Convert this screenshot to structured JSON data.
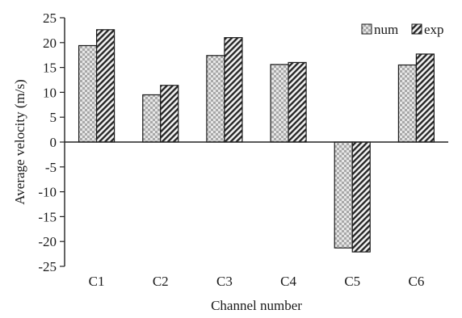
{
  "chart_data": {
    "type": "bar",
    "title": "",
    "xlabel": "Channel number",
    "ylabel": "Average velocity (m/s)",
    "categories": [
      "C1",
      "C2",
      "C3",
      "C4",
      "C5",
      "C6"
    ],
    "ylim": [
      -25,
      25
    ],
    "yticks": [
      25,
      20,
      15,
      10,
      5,
      0,
      -5,
      -10,
      -15,
      -20,
      -25
    ],
    "grid": false,
    "legend_position": "top-right",
    "series": [
      {
        "name": "num",
        "values": [
          19.4,
          9.5,
          17.4,
          15.6,
          -21.3,
          15.5
        ],
        "color": "#bdbdbd",
        "pattern": "checker"
      },
      {
        "name": "exp",
        "values": [
          22.6,
          11.4,
          21.0,
          16.0,
          -22.1,
          17.7
        ],
        "color": "#5a5a5a",
        "pattern": "diagonal-hatch"
      }
    ]
  }
}
